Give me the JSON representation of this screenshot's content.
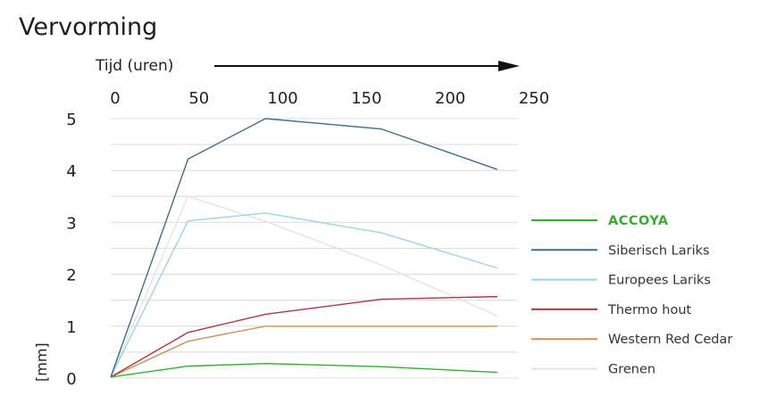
{
  "chart_data": {
    "type": "line",
    "title": "Vervorming",
    "xlabel": "Tijd (uren)",
    "ylabel": "[mm]",
    "x_ticks": [
      0,
      50,
      100,
      150,
      200,
      250
    ],
    "y_ticks": [
      0,
      1,
      2,
      3,
      4,
      5
    ],
    "xlim": [
      0,
      250
    ],
    "ylim": [
      0,
      5
    ],
    "x": [
      0,
      48,
      96,
      168,
      240
    ],
    "grid": true,
    "legend_position": "right",
    "series": [
      {
        "name": "ACCOYA",
        "color": "#3aaa35",
        "values": [
          0.02,
          0.23,
          0.28,
          0.22,
          0.11
        ]
      },
      {
        "name": "Siberisch Lariks",
        "color": "#3f6f8e",
        "values": [
          0.02,
          4.22,
          5.0,
          4.8,
          4.02
        ]
      },
      {
        "name": "Europees Lariks",
        "color": "#9fd3ea",
        "values": [
          0.02,
          3.03,
          3.18,
          2.8,
          2.12
        ]
      },
      {
        "name": "Thermo hout",
        "color": "#a83a44",
        "values": [
          0.02,
          0.88,
          1.23,
          1.52,
          1.57
        ]
      },
      {
        "name": "Western Red Cedar",
        "color": "#c8935f",
        "values": [
          0.02,
          0.71,
          1.0,
          1.0,
          1.0
        ]
      },
      {
        "name": "Grenen",
        "color": "#e3e3e3",
        "values": [
          0.02,
          3.5,
          3.02,
          2.18,
          1.2
        ]
      }
    ]
  }
}
